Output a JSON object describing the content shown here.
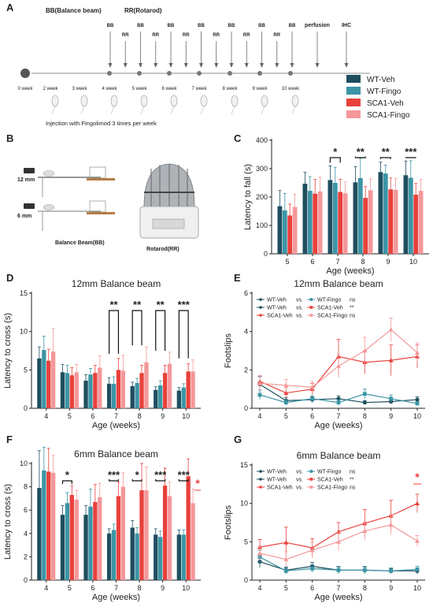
{
  "colors": {
    "wt_veh": "#1f4e5f",
    "wt_fingo": "#3c95a5",
    "sca1_veh": "#e8413c",
    "sca1_fingo": "#f4989a",
    "star_red": "#e8413c"
  },
  "panel_labels": [
    "A",
    "B",
    "C",
    "D",
    "E",
    "F",
    "G"
  ],
  "panel_a": {
    "test_header_bb": "BB(Balance beam)",
    "test_header_rr": "RR(Rotarod)",
    "markers": [
      {
        "label": "BB",
        "week": 4
      },
      {
        "label": "RR",
        "week": 4.5
      },
      {
        "label": "BB",
        "week": 5
      },
      {
        "label": "RR",
        "week": 5.5
      },
      {
        "label": "BB",
        "week": 6
      },
      {
        "label": "RR",
        "week": 6.5
      },
      {
        "label": "BB",
        "week": 7
      },
      {
        "label": "RR",
        "week": 7.5
      },
      {
        "label": "BB",
        "week": 8
      },
      {
        "label": "RR",
        "week": 8.5
      },
      {
        "label": "BB",
        "week": 9
      },
      {
        "label": "RR",
        "week": 9.5
      },
      {
        "label": "BB",
        "week": 10
      },
      {
        "label": "perfusion",
        "week": 11
      },
      {
        "label": "IHC",
        "week": 12
      }
    ],
    "week_labels": [
      "0 week",
      "2 week",
      "3 week",
      "4 week",
      "5 week",
      "6 week",
      "7 week",
      "8 week",
      "9 week",
      "10 week"
    ],
    "injection_note": "Injection with Fingolimod 3 times per week",
    "legend": [
      "WT-Veh",
      "WT-Fingo",
      "SCA1-Veh",
      "SCA1-Fingo"
    ]
  },
  "panel_b": {
    "beam_12": "12 mm",
    "beam_6": "6 mm",
    "caption_bb": "Balance Beam(BB)",
    "caption_rr": "Rotarod(RR)"
  },
  "chart_data": [
    {
      "panel": "C",
      "type": "bar",
      "title": "",
      "xlabel": "Age (weeks)",
      "ylabel": "Latency to fall (s)",
      "ylim": [
        0,
        400
      ],
      "yticks": [
        0,
        100,
        200,
        300,
        400
      ],
      "categories": [
        "5",
        "6",
        "7",
        "8",
        "9",
        "10"
      ],
      "series": [
        {
          "name": "WT-Veh",
          "values": [
            168,
            247,
            260,
            252,
            288,
            277
          ],
          "errors": [
            55,
            40,
            50,
            55,
            35,
            50
          ]
        },
        {
          "name": "WT-Fingo",
          "values": [
            153,
            222,
            250,
            267,
            283,
            268
          ],
          "errors": [
            60,
            50,
            55,
            70,
            30,
            60
          ]
        },
        {
          "name": "SCA1-Veh",
          "values": [
            135,
            212,
            218,
            197,
            227,
            208
          ],
          "errors": [
            40,
            50,
            45,
            40,
            40,
            40
          ]
        },
        {
          "name": "SCA1-Fingo",
          "values": [
            165,
            220,
            213,
            224,
            225,
            222
          ],
          "errors": [
            45,
            50,
            40,
            40,
            40,
            40
          ]
        }
      ],
      "significance": [
        {
          "category": "7",
          "label": "*"
        },
        {
          "category": "8",
          "label": "**"
        },
        {
          "category": "9",
          "label": "**"
        },
        {
          "category": "10",
          "label": "***"
        }
      ]
    },
    {
      "panel": "D",
      "type": "bar",
      "title": "12mm Balance beam",
      "xlabel": "Age (weeks)",
      "ylabel": "Latency to cross (s)",
      "ylim": [
        0,
        15
      ],
      "yticks": [
        0,
        5,
        10,
        15
      ],
      "categories": [
        "4",
        "5",
        "6",
        "7",
        "8",
        "9",
        "10"
      ],
      "series": [
        {
          "name": "WT-Veh",
          "values": [
            6.5,
            4.7,
            3.6,
            3.2,
            2.9,
            2.4,
            2.3
          ],
          "errors": [
            1.5,
            1.0,
            0.8,
            0.8,
            0.5,
            0.4,
            0.4
          ]
        },
        {
          "name": "WT-Fingo",
          "values": [
            7.6,
            4.6,
            4.4,
            3.2,
            3.3,
            3.0,
            2.7
          ],
          "errors": [
            1.8,
            1.0,
            0.8,
            0.9,
            0.6,
            0.6,
            0.5
          ]
        },
        {
          "name": "SCA1-Veh",
          "values": [
            6.2,
            4.3,
            4.6,
            5.0,
            4.6,
            4.6,
            4.8
          ],
          "errors": [
            1.5,
            1.0,
            1.0,
            1.5,
            1.0,
            1.0,
            1.0
          ]
        },
        {
          "name": "SCA1-Fingo",
          "values": [
            7.4,
            4.7,
            5.3,
            4.9,
            6.0,
            5.8,
            4.8
          ],
          "errors": [
            3.0,
            1.0,
            1.5,
            2.0,
            2.0,
            1.5,
            1.5
          ]
        }
      ],
      "significance": [
        {
          "category": "7",
          "label": "**"
        },
        {
          "category": "8",
          "label": "**"
        },
        {
          "category": "9",
          "label": "**"
        },
        {
          "category": "10",
          "label": "***"
        }
      ]
    },
    {
      "panel": "E",
      "type": "line",
      "title": "12mm Balance beam",
      "xlabel": "Age (weeks)",
      "ylabel": "Footslips",
      "ylim": [
        0,
        6
      ],
      "yticks": [
        0,
        2,
        4,
        6
      ],
      "x": [
        4,
        5,
        6,
        7,
        8,
        9,
        10
      ],
      "series": [
        {
          "name": "WT-Veh",
          "values": [
            1.25,
            0.4,
            0.45,
            0.5,
            0.3,
            0.35,
            0.45
          ],
          "errors": [
            0.4,
            0.15,
            0.15,
            0.15,
            0.1,
            0.1,
            0.15
          ]
        },
        {
          "name": "WT-Fingo",
          "values": [
            0.7,
            0.3,
            0.5,
            0.3,
            0.75,
            0.5,
            0.25
          ],
          "errors": [
            0.25,
            0.15,
            0.15,
            0.15,
            0.25,
            0.2,
            0.1
          ]
        },
        {
          "name": "SCA1-Veh",
          "values": [
            1.4,
            0.8,
            1.0,
            2.7,
            2.4,
            2.5,
            2.7
          ],
          "errors": [
            0.3,
            0.3,
            0.3,
            0.9,
            0.6,
            0.8,
            0.6
          ]
        },
        {
          "name": "SCA1-Fingo",
          "values": [
            1.3,
            1.2,
            1.1,
            2.2,
            3.0,
            4.1,
            2.9
          ],
          "errors": [
            0.4,
            0.3,
            0.3,
            0.6,
            0.7,
            0.6,
            0.5
          ]
        }
      ],
      "legend_rows": [
        {
          "a": "WT-Veh",
          "vs": "vs.",
          "b": "WT-Fingo",
          "sig": "ns"
        },
        {
          "a": "WT-Veh",
          "vs": "vs.",
          "b": "SCA1-Veh",
          "sig": "**"
        },
        {
          "a": "SCA1-Veh",
          "vs": "vs.",
          "b": "SCA1-Fingo",
          "sig": "ns"
        }
      ]
    },
    {
      "panel": "F",
      "type": "bar",
      "title": "6mm Balance beam",
      "xlabel": "Age (weeks)",
      "ylabel": "Latency to cross (s)",
      "ylim": [
        0,
        10
      ],
      "yticks": [
        0,
        2,
        4,
        6,
        8,
        10
      ],
      "categories": [
        "4",
        "5",
        "6",
        "7",
        "8",
        "9",
        "10"
      ],
      "series": [
        {
          "name": "WT-Veh",
          "values": [
            7.9,
            5.6,
            5.6,
            4.0,
            4.5,
            3.9,
            3.9
          ],
          "errors": [
            3.2,
            0.8,
            0.8,
            0.4,
            0.6,
            0.5,
            0.4
          ]
        },
        {
          "name": "WT-Fingo",
          "values": [
            9.4,
            6.6,
            6.3,
            4.3,
            4.0,
            3.7,
            3.9
          ],
          "errors": [
            2.0,
            0.9,
            1.5,
            0.5,
            0.5,
            0.5,
            0.4
          ]
        },
        {
          "name": "SCA1-Veh",
          "values": [
            9.3,
            7.3,
            6.7,
            7.2,
            7.7,
            8.1,
            8.9
          ],
          "errors": [
            2.0,
            0.8,
            1.5,
            1.2,
            2.3,
            1.5,
            1.5
          ]
        },
        {
          "name": "SCA1-Fingo",
          "values": [
            9.2,
            6.9,
            7.1,
            8.0,
            7.7,
            7.2,
            6.6
          ],
          "errors": [
            1.5,
            0.8,
            1.2,
            1.2,
            2.0,
            1.2,
            1.2
          ]
        }
      ],
      "significance": [
        {
          "category": "5",
          "label": "*"
        },
        {
          "category": "7",
          "label": "***"
        },
        {
          "category": "8",
          "label": "*"
        },
        {
          "category": "9",
          "label": "***"
        },
        {
          "category": "10",
          "label": "***"
        }
      ],
      "extra_marker": {
        "category": "10",
        "label": "*"
      }
    },
    {
      "panel": "G",
      "type": "line",
      "title": "6mm Balance beam",
      "xlabel": "Age (weeks)",
      "ylabel": "Footslips",
      "ylim": [
        0,
        15
      ],
      "yticks": [
        0,
        5,
        10,
        15
      ],
      "x": [
        4,
        5,
        6,
        7,
        8,
        9,
        10
      ],
      "series": [
        {
          "name": "WT-Veh",
          "values": [
            2.4,
            1.3,
            1.8,
            1.3,
            1.3,
            1.2,
            1.2
          ],
          "errors": [
            0.8,
            0.4,
            0.5,
            0.4,
            0.4,
            0.3,
            0.4
          ]
        },
        {
          "name": "WT-Fingo",
          "values": [
            3.0,
            1.2,
            1.5,
            1.3,
            1.3,
            1.2,
            1.4
          ],
          "errors": [
            0.9,
            0.4,
            0.5,
            0.5,
            0.5,
            0.4,
            0.4
          ]
        },
        {
          "name": "SCA1-Veh",
          "values": [
            4.3,
            4.9,
            4.2,
            6.3,
            7.4,
            8.4,
            10.0
          ],
          "errors": [
            1.0,
            2.0,
            1.2,
            1.2,
            1.8,
            2.0,
            1.2
          ]
        },
        {
          "name": "SCA1-Fingo",
          "values": [
            3.5,
            2.7,
            3.9,
            5.0,
            6.4,
            7.2,
            5.1
          ],
          "errors": [
            0.9,
            1.0,
            1.0,
            1.2,
            1.2,
            1.3,
            0.7
          ]
        }
      ],
      "legend_rows": [
        {
          "a": "WT-Veh",
          "vs": "vs.",
          "b": "WT-Fingo",
          "sig": "ns"
        },
        {
          "a": "WT-Veh",
          "vs": "vs.",
          "b": "SCA1-Veh",
          "sig": "**"
        },
        {
          "a": "SCA1-Veh",
          "vs": "vs.",
          "b": "SCA1-Fingo",
          "sig": "ns"
        }
      ],
      "extra_marker": {
        "x": 10,
        "label": "*"
      }
    }
  ]
}
